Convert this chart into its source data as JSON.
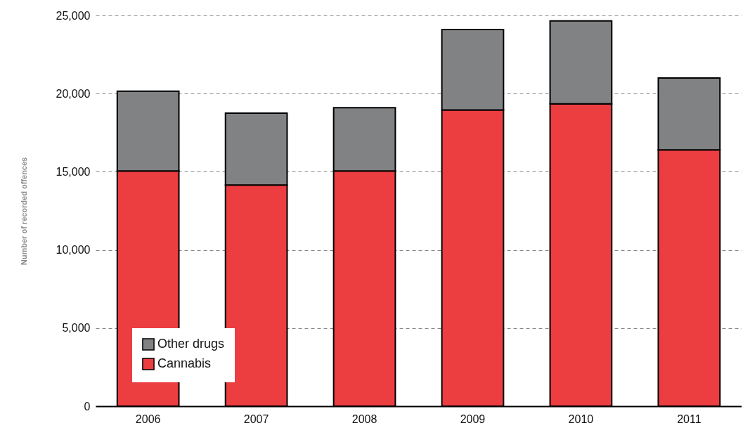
{
  "chart_data": {
    "type": "bar",
    "stacked": true,
    "ylabel": "Number of recorded offences",
    "categories": [
      "2006",
      "2007",
      "2008",
      "2009",
      "2010",
      "2011"
    ],
    "series": [
      {
        "name": "Cannabis",
        "color": "#ec3d41",
        "values": [
          15050,
          14150,
          15050,
          18950,
          19350,
          16400
        ]
      },
      {
        "name": "Other drugs",
        "color": "#808284",
        "values": [
          5100,
          4600,
          4050,
          5150,
          5300,
          4600
        ]
      }
    ],
    "ylim": [
      0,
      25000
    ],
    "yticks": [
      {
        "value": 0,
        "label": "0"
      },
      {
        "value": 5000,
        "label": "5,000"
      },
      {
        "value": 10000,
        "label": "10,000"
      },
      {
        "value": 15000,
        "label": "15,000"
      },
      {
        "value": 20000,
        "label": "20,000"
      },
      {
        "value": 25000,
        "label": "25,000"
      }
    ],
    "grid": "y",
    "legend": "bottom left"
  }
}
